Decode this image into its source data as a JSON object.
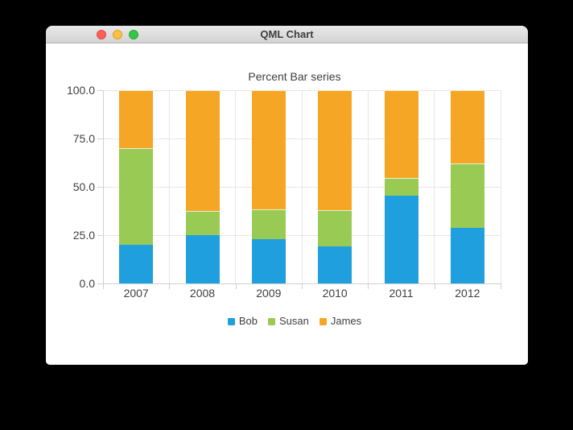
{
  "window": {
    "title": "QML Chart",
    "controls": {
      "close": "close-window",
      "minimize": "minimize-window",
      "zoom": "zoom-window"
    }
  },
  "chart_data": {
    "type": "bar",
    "variant": "percent_stacked",
    "title": "Percent Bar series",
    "categories": [
      "2007",
      "2008",
      "2009",
      "2010",
      "2011",
      "2012"
    ],
    "series": [
      {
        "name": "Bob",
        "color": "#209fdf",
        "percent_values": [
          20.0,
          25.0,
          23.08,
          19.05,
          45.45,
          28.57
        ]
      },
      {
        "name": "Susan",
        "color": "#99ca53",
        "percent_values": [
          50.0,
          12.5,
          15.38,
          19.05,
          9.09,
          33.33
        ]
      },
      {
        "name": "James",
        "color": "#f6a625",
        "percent_values": [
          30.0,
          62.5,
          61.54,
          61.9,
          45.45,
          38.1
        ]
      }
    ],
    "y_axis": {
      "tick_labels": [
        "0.0",
        "25.0",
        "50.0",
        "75.0",
        "100.0"
      ],
      "range": [
        0,
        100
      ],
      "grid": true
    },
    "x_axis": {
      "grid": true
    },
    "legend": {
      "position": "bottom",
      "entries": [
        "Bob",
        "Susan",
        "James"
      ]
    }
  },
  "colors": {
    "label": "#404044",
    "gridline": "#e7e7e7",
    "axisline": "#d0d0d0",
    "background": "#ffffff"
  }
}
